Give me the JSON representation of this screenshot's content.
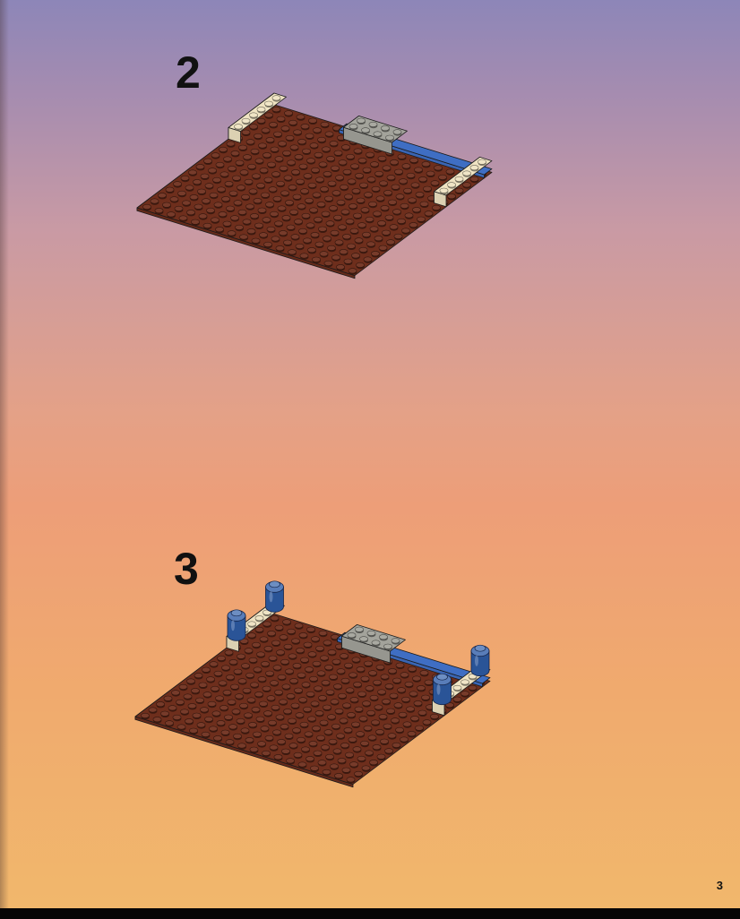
{
  "steps": [
    {
      "number": "2"
    },
    {
      "number": "3"
    }
  ],
  "page": {
    "number": "3"
  },
  "colors": {
    "baseplate": "#6e2e1c",
    "tan_brick": "#efe3c2",
    "gray_brick": "#a3a39b",
    "blue_plate": "#3f6ec3",
    "blue_round": "#2f5da8"
  }
}
